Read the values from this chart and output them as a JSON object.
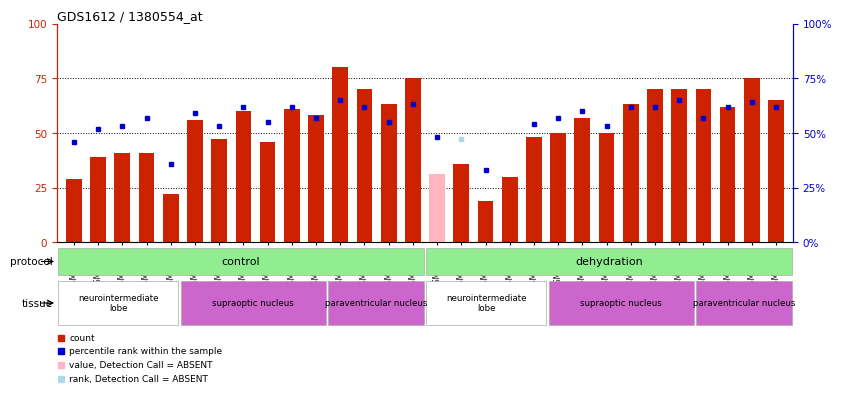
{
  "title": "GDS1612 / 1380554_at",
  "samples": [
    "GSM69787",
    "GSM69788",
    "GSM69789",
    "GSM69790",
    "GSM69791",
    "GSM69461",
    "GSM69462",
    "GSM69463",
    "GSM69464",
    "GSM69465",
    "GSM69475",
    "GSM69476",
    "GSM69477",
    "GSM69478",
    "GSM69479",
    "GSM69782",
    "GSM69783",
    "GSM69784",
    "GSM69785",
    "GSM69786",
    "GSM69268",
    "GSM69457",
    "GSM69458",
    "GSM69459",
    "GSM69460",
    "GSM69470",
    "GSM69471",
    "GSM69472",
    "GSM69473",
    "GSM69474"
  ],
  "bar_values": [
    29,
    39,
    41,
    41,
    22,
    56,
    47,
    60,
    46,
    61,
    58,
    80,
    70,
    63,
    75,
    31,
    36,
    19,
    30,
    48,
    50,
    57,
    50,
    63,
    70,
    70,
    70,
    62,
    75,
    65
  ],
  "rank_values": [
    46,
    52,
    53,
    57,
    36,
    59,
    53,
    62,
    55,
    62,
    57,
    65,
    62,
    55,
    63,
    48,
    47,
    33,
    null,
    54,
    57,
    60,
    53,
    62,
    62,
    65,
    57,
    62,
    64,
    62
  ],
  "absent_bars": [
    15
  ],
  "absent_ranks": [
    16
  ],
  "bar_color": "#CC2200",
  "absent_bar_color": "#FFB6C1",
  "rank_color": "#0000CC",
  "absent_rank_color": "#ADD8E6",
  "ylim": [
    0,
    100
  ],
  "yticks": [
    0,
    25,
    50,
    75,
    100
  ],
  "protocol_groups": [
    {
      "label": "control",
      "start": 0,
      "end": 15,
      "color": "#90EE90"
    },
    {
      "label": "dehydration",
      "start": 15,
      "end": 30,
      "color": "#90EE90"
    }
  ],
  "tissue_groups": [
    {
      "label": "neurointermediate\nlobe",
      "start": 0,
      "end": 5,
      "color": "#ffffff"
    },
    {
      "label": "supraoptic nucleus",
      "start": 5,
      "end": 11,
      "color": "#CC66CC"
    },
    {
      "label": "paraventricular nucleus",
      "start": 11,
      "end": 15,
      "color": "#CC66CC"
    },
    {
      "label": "neurointermediate\nlobe",
      "start": 15,
      "end": 20,
      "color": "#ffffff"
    },
    {
      "label": "supraoptic nucleus",
      "start": 20,
      "end": 26,
      "color": "#CC66CC"
    },
    {
      "label": "paraventricular nucleus",
      "start": 26,
      "end": 30,
      "color": "#CC66CC"
    }
  ]
}
